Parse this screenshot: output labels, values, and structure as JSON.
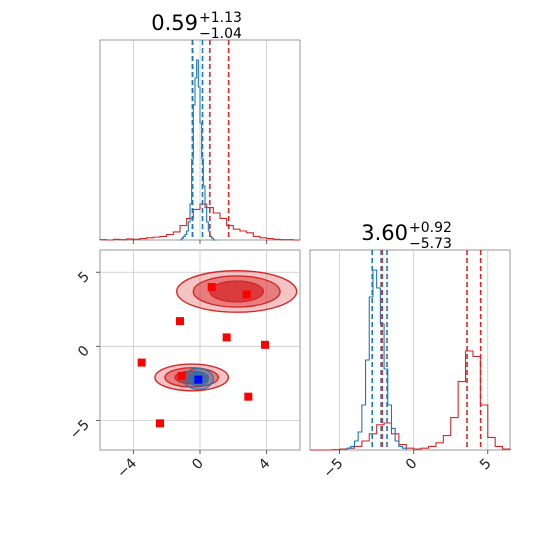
{
  "chart_data": {
    "type": "corner",
    "colors": {
      "primary": "#1f77b4",
      "secondary": "#d62728",
      "truth_marker": "#0000ff",
      "sample_marker": "#ff0000"
    },
    "parameters": [
      {
        "median": "0.59",
        "plus": "+1.13",
        "minus": "−1.04",
        "range": [
          -6,
          6
        ],
        "ticks": [
          -4,
          0,
          4
        ],
        "tick_labels": [
          "−4",
          "0",
          "4"
        ]
      },
      {
        "median": "3.60",
        "plus": "+0.92",
        "minus": "−5.73",
        "range": [
          -7,
          6.5
        ],
        "ticks": [
          -5,
          0,
          5
        ],
        "tick_labels": [
          "−5",
          "0",
          "5"
        ]
      }
    ],
    "hist_1d": [
      {
        "quantiles_secondary": [
          -0.45,
          0.59,
          1.72
        ],
        "quantiles_primary": [
          -0.45,
          0.15
        ],
        "series": [
          {
            "name": "",
            "color": "#d62728",
            "peak": 0.2,
            "bin_edges": [
              -6,
              -5.6,
              -5.2,
              -4.8,
              -4.4,
              -4,
              -3.6,
              -3.2,
              -2.8,
              -2.4,
              -2,
              -1.6,
              -1.2,
              -0.8,
              -0.4,
              0,
              0.4,
              0.8,
              1.2,
              1.6,
              2,
              2.4,
              2.8,
              3.2,
              3.6,
              4,
              4.4,
              4.8,
              5.2,
              5.6,
              6
            ],
            "counts": [
              0.002,
              0,
              0.004,
              0.002,
              0.006,
              0.004,
              0.008,
              0.012,
              0.016,
              0.02,
              0.03,
              0.045,
              0.08,
              0.12,
              0.17,
              0.2,
              0.18,
              0.15,
              0.12,
              0.08,
              0.06,
              0.05,
              0.04,
              0.02,
              0.012,
              0.008,
              0.004,
              0.002,
              0.002,
              0
            ]
          },
          {
            "name": "",
            "color": "#1f77b4",
            "peak": 1.0,
            "bin_edges": [
              -1.2,
              -1.1,
              -1,
              -0.9,
              -0.8,
              -0.7,
              -0.6,
              -0.5,
              -0.4,
              -0.3,
              -0.2,
              -0.1,
              0,
              0.1,
              0.2,
              0.3,
              0.4,
              0.5,
              0.6,
              0.7,
              0.8,
              0.9,
              1
            ],
            "counts": [
              0,
              0.01,
              0.02,
              0.03,
              0.05,
              0.1,
              0.2,
              0.45,
              0.75,
              0.9,
              1.0,
              0.85,
              0.65,
              0.45,
              0.3,
              0.18,
              0.1,
              0.05,
              0.02,
              0.01,
              0,
              0
            ]
          }
        ]
      },
      {
        "quantiles_secondary": [
          -2.13,
          3.6,
          4.52
        ],
        "quantiles_primary": [
          -2.8,
          -2.2,
          -1.8
        ],
        "series": [
          {
            "name": "",
            "color": "#d62728",
            "peak": 0.55,
            "bin_edges": [
              -7,
              -6.5,
              -6,
              -5.5,
              -5,
              -4.5,
              -4,
              -3.5,
              -3,
              -2.5,
              -2,
              -1.5,
              -1,
              -0.5,
              0,
              0.5,
              1,
              1.5,
              2,
              2.5,
              3,
              3.5,
              4,
              4.5,
              5,
              5.5,
              6,
              6.5
            ],
            "counts": [
              0,
              0,
              0,
              0.002,
              0.005,
              0.01,
              0.02,
              0.05,
              0.09,
              0.14,
              0.15,
              0.09,
              0.03,
              0.01,
              0.005,
              0.01,
              0.02,
              0.04,
              0.08,
              0.18,
              0.38,
              0.55,
              0.52,
              0.25,
              0.07,
              0.02,
              0.005
            ]
          },
          {
            "name": "",
            "color": "#1f77b4",
            "peak": 1.0,
            "bin_edges": [
              -4.5,
              -4.25,
              -4,
              -3.75,
              -3.5,
              -3.25,
              -3,
              -2.75,
              -2.5,
              -2.25,
              -2,
              -1.75,
              -1.5,
              -1.25,
              -1,
              -0.75,
              -0.5
            ],
            "counts": [
              0.01,
              0.02,
              0.05,
              0.1,
              0.25,
              0.5,
              0.85,
              1.0,
              0.9,
              0.7,
              0.45,
              0.25,
              0.12,
              0.05,
              0.02,
              0.01
            ]
          }
        ]
      }
    ],
    "hist_2d": {
      "x_range": [
        -6,
        6
      ],
      "y_range": [
        -7,
        6.5
      ],
      "x_ticks": [
        -4,
        0,
        4
      ],
      "x_tick_labels": [
        "−4",
        "0",
        "4"
      ],
      "y_ticks": [
        -5,
        0,
        5
      ],
      "y_tick_labels": [
        "−5",
        "0",
        "5"
      ],
      "secondary_modes": [
        {
          "cx": 2.2,
          "cy": 3.7,
          "levels": [
            [
              3.6,
              1.4
            ],
            [
              2.6,
              1.05
            ],
            [
              1.6,
              0.7
            ]
          ]
        },
        {
          "cx": -0.5,
          "cy": -2.1,
          "levels": [
            [
              2.2,
              0.9
            ],
            [
              1.6,
              0.65
            ],
            [
              1.0,
              0.42
            ]
          ]
        }
      ],
      "primary_mode": {
        "cx": -0.1,
        "cy": -2.2,
        "levels": [
          [
            0.9,
            0.7
          ],
          [
            0.6,
            0.45
          ],
          [
            0.35,
            0.28
          ]
        ]
      },
      "truth_point": [
        -0.1,
        -2.25
      ],
      "sample_points": [
        [
          0.7,
          4.0
        ],
        [
          2.8,
          3.5
        ],
        [
          -1.2,
          1.7
        ],
        [
          1.6,
          0.6
        ],
        [
          3.9,
          0.1
        ],
        [
          -3.5,
          -1.1
        ],
        [
          -1.1,
          -2.0
        ],
        [
          2.9,
          -3.4
        ],
        [
          -2.4,
          -5.2
        ]
      ]
    }
  }
}
